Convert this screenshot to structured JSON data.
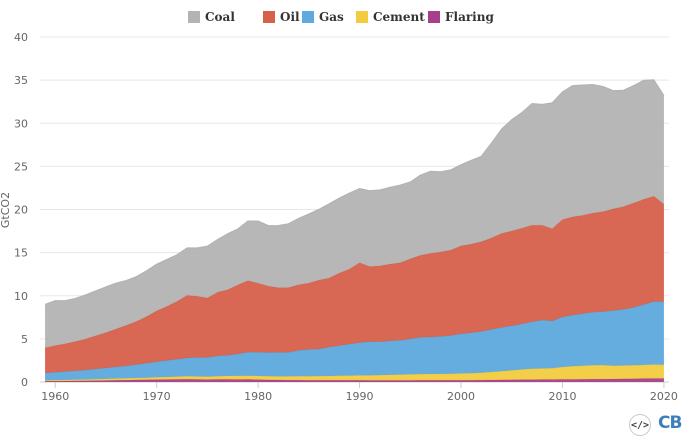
{
  "chart_data": {
    "type": "area",
    "stacked": true,
    "ylabel": "GtCO2",
    "ylim": [
      0,
      40
    ],
    "yticks": [
      0,
      5,
      10,
      15,
      20,
      25,
      30,
      35,
      40
    ],
    "xlim": [
      1958.5,
      2020.5
    ],
    "xticks": [
      1960,
      1970,
      1980,
      1990,
      2000,
      2010,
      2020
    ],
    "grid": true,
    "legend_position": "top-center",
    "x": [
      1959,
      1960,
      1961,
      1962,
      1963,
      1964,
      1965,
      1966,
      1967,
      1968,
      1969,
      1970,
      1971,
      1972,
      1973,
      1974,
      1975,
      1976,
      1977,
      1978,
      1979,
      1980,
      1981,
      1982,
      1983,
      1984,
      1985,
      1986,
      1987,
      1988,
      1989,
      1990,
      1991,
      1992,
      1993,
      1994,
      1995,
      1996,
      1997,
      1998,
      1999,
      2000,
      2001,
      2002,
      2003,
      2004,
      2005,
      2006,
      2007,
      2008,
      2009,
      2010,
      2011,
      2012,
      2013,
      2014,
      2015,
      2016,
      2017,
      2018,
      2019,
      2020
    ],
    "series": [
      {
        "name": "Flaring",
        "color": "#a6408c",
        "values": [
          0.1,
          0.1,
          0.12,
          0.13,
          0.14,
          0.16,
          0.18,
          0.2,
          0.22,
          0.24,
          0.26,
          0.28,
          0.29,
          0.3,
          0.32,
          0.3,
          0.28,
          0.3,
          0.3,
          0.29,
          0.3,
          0.27,
          0.24,
          0.23,
          0.22,
          0.22,
          0.21,
          0.2,
          0.2,
          0.2,
          0.2,
          0.2,
          0.19,
          0.19,
          0.19,
          0.19,
          0.19,
          0.2,
          0.2,
          0.2,
          0.2,
          0.21,
          0.21,
          0.22,
          0.23,
          0.24,
          0.26,
          0.27,
          0.28,
          0.29,
          0.29,
          0.3,
          0.31,
          0.32,
          0.33,
          0.34,
          0.35,
          0.36,
          0.38,
          0.4,
          0.41,
          0.4
        ]
      },
      {
        "name": "Cement",
        "color": "#f2cb3e",
        "values": [
          0.1,
          0.12,
          0.13,
          0.14,
          0.15,
          0.17,
          0.18,
          0.2,
          0.21,
          0.22,
          0.24,
          0.27,
          0.29,
          0.32,
          0.34,
          0.34,
          0.34,
          0.37,
          0.39,
          0.42,
          0.43,
          0.43,
          0.42,
          0.42,
          0.43,
          0.45,
          0.46,
          0.48,
          0.5,
          0.52,
          0.54,
          0.57,
          0.58,
          0.61,
          0.64,
          0.67,
          0.69,
          0.71,
          0.72,
          0.72,
          0.75,
          0.77,
          0.8,
          0.85,
          0.93,
          1.01,
          1.09,
          1.18,
          1.26,
          1.28,
          1.31,
          1.44,
          1.52,
          1.57,
          1.61,
          1.61,
          1.54,
          1.55,
          1.56,
          1.57,
          1.62,
          1.6
        ]
      },
      {
        "name": "Gas",
        "color": "#5ea9dd",
        "values": [
          0.85,
          0.9,
          0.96,
          1.02,
          1.1,
          1.18,
          1.26,
          1.35,
          1.43,
          1.55,
          1.68,
          1.8,
          1.92,
          2.02,
          2.13,
          2.2,
          2.22,
          2.34,
          2.4,
          2.53,
          2.72,
          2.75,
          2.76,
          2.78,
          2.79,
          3.0,
          3.1,
          3.13,
          3.35,
          3.5,
          3.65,
          3.8,
          3.9,
          3.86,
          3.94,
          3.96,
          4.1,
          4.27,
          4.3,
          4.35,
          4.44,
          4.6,
          4.68,
          4.79,
          4.93,
          5.07,
          5.16,
          5.28,
          5.44,
          5.61,
          5.47,
          5.79,
          5.92,
          6.03,
          6.14,
          6.2,
          6.38,
          6.51,
          6.7,
          7.0,
          7.3,
          7.3
        ]
      },
      {
        "name": "Oil",
        "color": "#d6604a",
        "values": [
          2.9,
          3.1,
          3.22,
          3.4,
          3.6,
          3.85,
          4.1,
          4.4,
          4.7,
          5.0,
          5.4,
          5.9,
          6.25,
          6.7,
          7.25,
          7.1,
          6.9,
          7.4,
          7.6,
          8.0,
          8.3,
          8.0,
          7.7,
          7.5,
          7.5,
          7.6,
          7.7,
          8.0,
          8.0,
          8.4,
          8.7,
          9.25,
          8.7,
          8.8,
          8.9,
          9.0,
          9.3,
          9.5,
          9.7,
          9.8,
          9.9,
          10.2,
          10.3,
          10.4,
          10.6,
          10.9,
          11.0,
          11.1,
          11.2,
          11.0,
          10.7,
          11.3,
          11.4,
          11.4,
          11.5,
          11.6,
          11.8,
          11.9,
          12.1,
          12.2,
          12.2,
          11.3
        ]
      },
      {
        "name": "Coal",
        "color": "#b3b3b3",
        "values": [
          5.05,
          5.2,
          5.0,
          5.0,
          5.1,
          5.2,
          5.3,
          5.3,
          5.2,
          5.2,
          5.3,
          5.4,
          5.45,
          5.4,
          5.5,
          5.6,
          6.0,
          6.1,
          6.5,
          6.5,
          6.9,
          7.2,
          7.0,
          7.2,
          7.4,
          7.7,
          8.0,
          8.2,
          8.6,
          8.7,
          8.8,
          8.6,
          8.8,
          8.8,
          8.9,
          9.0,
          8.9,
          9.3,
          9.5,
          9.3,
          9.3,
          9.4,
          9.7,
          9.9,
          11.0,
          12.1,
          12.9,
          13.4,
          14.1,
          14.0,
          14.6,
          14.8,
          15.2,
          15.1,
          14.9,
          14.5,
          13.7,
          13.5,
          13.6,
          13.8,
          13.5,
          12.6
        ]
      }
    ]
  }
}
